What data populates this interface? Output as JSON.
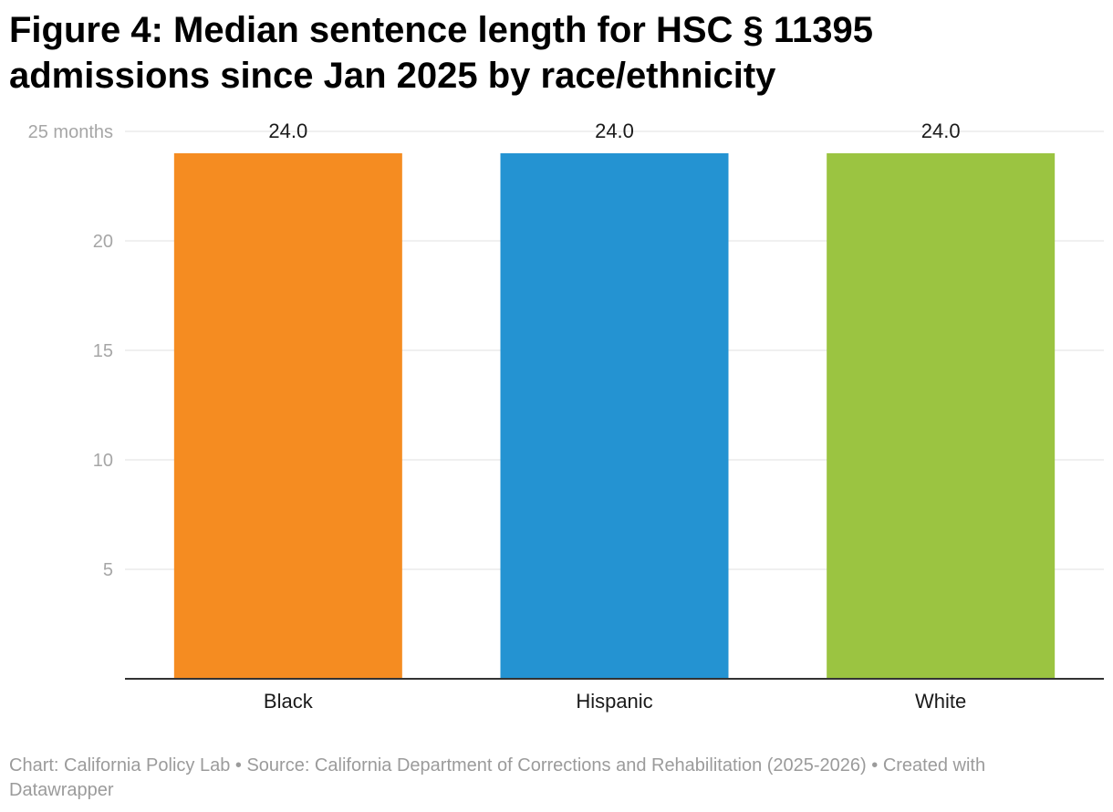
{
  "title_lines": [
    "Figure 4: Median sentence length for HSC § 11395",
    "admissions since Jan 2025 by race/ethnicity"
  ],
  "footer_lines": [
    "Chart: California Policy Lab • Source: California Department of Corrections and Rehabilitation (2025-2026) • Created with",
    "Datawrapper"
  ],
  "chart_data": {
    "type": "bar",
    "title": "Figure 4: Median sentence length for HSC § 11395 admissions since Jan 2025 by race/ethnicity",
    "categories": [
      "Black",
      "Hispanic",
      "White"
    ],
    "values": [
      24.0,
      24.0,
      24.0
    ],
    "data_labels": [
      "24.0",
      "24.0",
      "24.0"
    ],
    "colors": [
      "#f58c21",
      "#2493d2",
      "#9bc441"
    ],
    "ylim": [
      0,
      25
    ],
    "yticks": [
      5,
      10,
      15,
      20,
      25
    ],
    "ytick_labels": [
      "5",
      "10",
      "15",
      "20",
      "25 months"
    ],
    "grid": true,
    "legend": "none"
  }
}
